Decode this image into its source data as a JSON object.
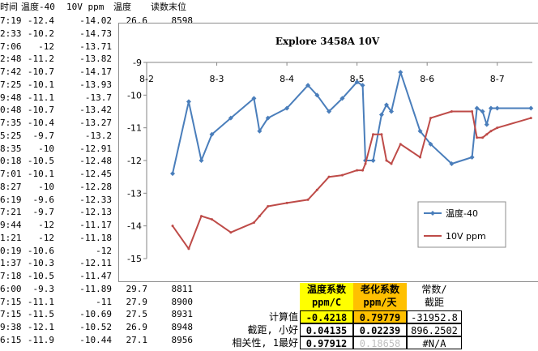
{
  "sheet": {
    "headers": [
      "时间",
      "温度-40",
      "10V ppm",
      "温度",
      "读数末位"
    ],
    "rows": [
      {
        "time": "7:19",
        "temp40": "-12.4",
        "ppm": "-14.02",
        "temp": "26.6",
        "last": "8598"
      },
      {
        "time": "2:33",
        "temp40": "-10.2",
        "ppm": "-14.73",
        "temp": "",
        "last": ""
      },
      {
        "time": "7:06",
        "temp40": "-12",
        "ppm": "-13.71",
        "temp": "",
        "last": ""
      },
      {
        "time": "2:48",
        "temp40": "-11.2",
        "ppm": "-13.82",
        "temp": "",
        "last": ""
      },
      {
        "time": "7:42",
        "temp40": "-10.7",
        "ppm": "-14.17",
        "temp": "",
        "last": ""
      },
      {
        "time": "7:25",
        "temp40": "-10.1",
        "ppm": "-13.93",
        "temp": "",
        "last": ""
      },
      {
        "time": "9:48",
        "temp40": "-11.1",
        "ppm": "-13.7",
        "temp": "",
        "last": ""
      },
      {
        "time": "0:48",
        "temp40": "-10.7",
        "ppm": "-13.42",
        "temp": "",
        "last": ""
      },
      {
        "time": "7:35",
        "temp40": "-10.4",
        "ppm": "-13.27",
        "temp": "",
        "last": ""
      },
      {
        "time": "5:25",
        "temp40": "-9.7",
        "ppm": "-13.2",
        "temp": "",
        "last": ""
      },
      {
        "time": "8:35",
        "temp40": "-10",
        "ppm": "-12.91",
        "temp": "",
        "last": ""
      },
      {
        "time": "0:18",
        "temp40": "-10.5",
        "ppm": "-12.48",
        "temp": "",
        "last": ""
      },
      {
        "time": "7:01",
        "temp40": "-10.1",
        "ppm": "-12.45",
        "temp": "",
        "last": ""
      },
      {
        "time": "8:27",
        "temp40": "-10",
        "ppm": "-12.28",
        "temp": "",
        "last": ""
      },
      {
        "time": "6:19",
        "temp40": "-9.6",
        "ppm": "-12.33",
        "temp": "",
        "last": ""
      },
      {
        "time": "7:21",
        "temp40": "-9.7",
        "ppm": "-12.13",
        "temp": "",
        "last": ""
      },
      {
        "time": "9:44",
        "temp40": "-12",
        "ppm": "-11.17",
        "temp": "",
        "last": ""
      },
      {
        "time": "1:21",
        "temp40": "-12",
        "ppm": "-11.18",
        "temp": "",
        "last": ""
      },
      {
        "time": "0:19",
        "temp40": "-10.6",
        "ppm": "-12",
        "temp": "",
        "last": ""
      },
      {
        "time": "1:37",
        "temp40": "-10.3",
        "ppm": "-12.11",
        "temp": "",
        "last": ""
      },
      {
        "time": "7:18",
        "temp40": "-10.5",
        "ppm": "-11.47",
        "temp": "",
        "last": ""
      },
      {
        "time": "6:00",
        "temp40": "-9.3",
        "ppm": "-11.89",
        "temp": "29.7",
        "last": "8811"
      },
      {
        "time": "7:15",
        "temp40": "-11.1",
        "ppm": "-11",
        "temp": "27.9",
        "last": "8900"
      },
      {
        "time": "7:15",
        "temp40": "-11.5",
        "ppm": "-10.69",
        "temp": "27.5",
        "last": "8931"
      },
      {
        "time": "9:38",
        "temp40": "-12.1",
        "ppm": "-10.52",
        "temp": "26.9",
        "last": "8948"
      },
      {
        "time": "6:15",
        "temp40": "-11.9",
        "ppm": "-10.44",
        "temp": "27.1",
        "last": "8956"
      }
    ]
  },
  "coef_table": {
    "headers": [
      {
        "line1": "温度系数",
        "line2": "ppm/C"
      },
      {
        "line1": "老化系数",
        "line2": "ppm/天"
      },
      {
        "line1": "常数/",
        "line2": "截距"
      }
    ],
    "rows": [
      {
        "label": "计算值",
        "v1": "-0.4218",
        "v2": "0.79779",
        "v3": "-31952.8"
      },
      {
        "label": "截距, 小好",
        "v1": "0.04135",
        "v2": "0.02239",
        "v3": "896.2502"
      },
      {
        "label": "相关性, 1最好",
        "v1": "0.97912",
        "v2": "0.18658",
        "v3": "#N/A"
      }
    ]
  },
  "colors": {
    "series1": "#4a7ebb",
    "series2": "#be4b48",
    "highlight_yellow": "#ffff00",
    "highlight_orange": "#ffc000"
  },
  "chart_data": {
    "type": "line",
    "title": "Explore 3458A 10V",
    "x_tick_labels": [
      "8-2",
      "8-3",
      "8-4",
      "8-5",
      "8-6",
      "8-7"
    ],
    "x_range": [
      8.2,
      8.75
    ],
    "ylim": [
      -15,
      -9
    ],
    "y_ticks": [
      -9,
      -10,
      -11,
      -12,
      -13,
      -14,
      -15
    ],
    "grid": false,
    "legend_position": "right",
    "series": [
      {
        "name": "温度-40",
        "color": "#4a7ebb",
        "marker": "diamond",
        "x": [
          8.237,
          8.26,
          8.278,
          8.293,
          8.32,
          8.353,
          8.361,
          8.373,
          8.4,
          8.43,
          8.443,
          8.46,
          8.479,
          8.5,
          8.508,
          8.512,
          8.523,
          8.535,
          8.542,
          8.549,
          8.562,
          8.59,
          8.605,
          8.635,
          8.664,
          8.671,
          8.679,
          8.685,
          8.691,
          8.7,
          8.748
        ],
        "y": [
          -12.4,
          -10.2,
          -12,
          -11.2,
          -10.7,
          -10.1,
          -11.1,
          -10.7,
          -10.4,
          -9.7,
          -10,
          -10.5,
          -10.1,
          -9.6,
          -9.7,
          -12,
          -12,
          -10.6,
          -10.3,
          -10.5,
          -9.3,
          -11.1,
          -11.5,
          -12.1,
          -11.9,
          -10.4,
          -10.5,
          -10.9,
          -10.4,
          -10.4,
          -10.4
        ]
      },
      {
        "name": "10V ppm",
        "color": "#be4b48",
        "marker": "none",
        "x": [
          8.237,
          8.26,
          8.278,
          8.293,
          8.32,
          8.353,
          8.361,
          8.373,
          8.4,
          8.43,
          8.443,
          8.46,
          8.479,
          8.5,
          8.508,
          8.512,
          8.523,
          8.535,
          8.542,
          8.549,
          8.562,
          8.59,
          8.605,
          8.635,
          8.664,
          8.671,
          8.679,
          8.685,
          8.691,
          8.7,
          8.748
        ],
        "y": [
          -14,
          -14.7,
          -13.7,
          -13.8,
          -14.2,
          -13.9,
          -13.7,
          -13.4,
          -13.3,
          -13.2,
          -12.9,
          -12.5,
          -12.45,
          -12.3,
          -12.3,
          -12.1,
          -11.2,
          -11.2,
          -12,
          -12.1,
          -11.5,
          -11.9,
          -10.7,
          -10.5,
          -10.5,
          -11.3,
          -11.3,
          -11.2,
          -11.1,
          -11,
          -10.7
        ]
      }
    ]
  }
}
